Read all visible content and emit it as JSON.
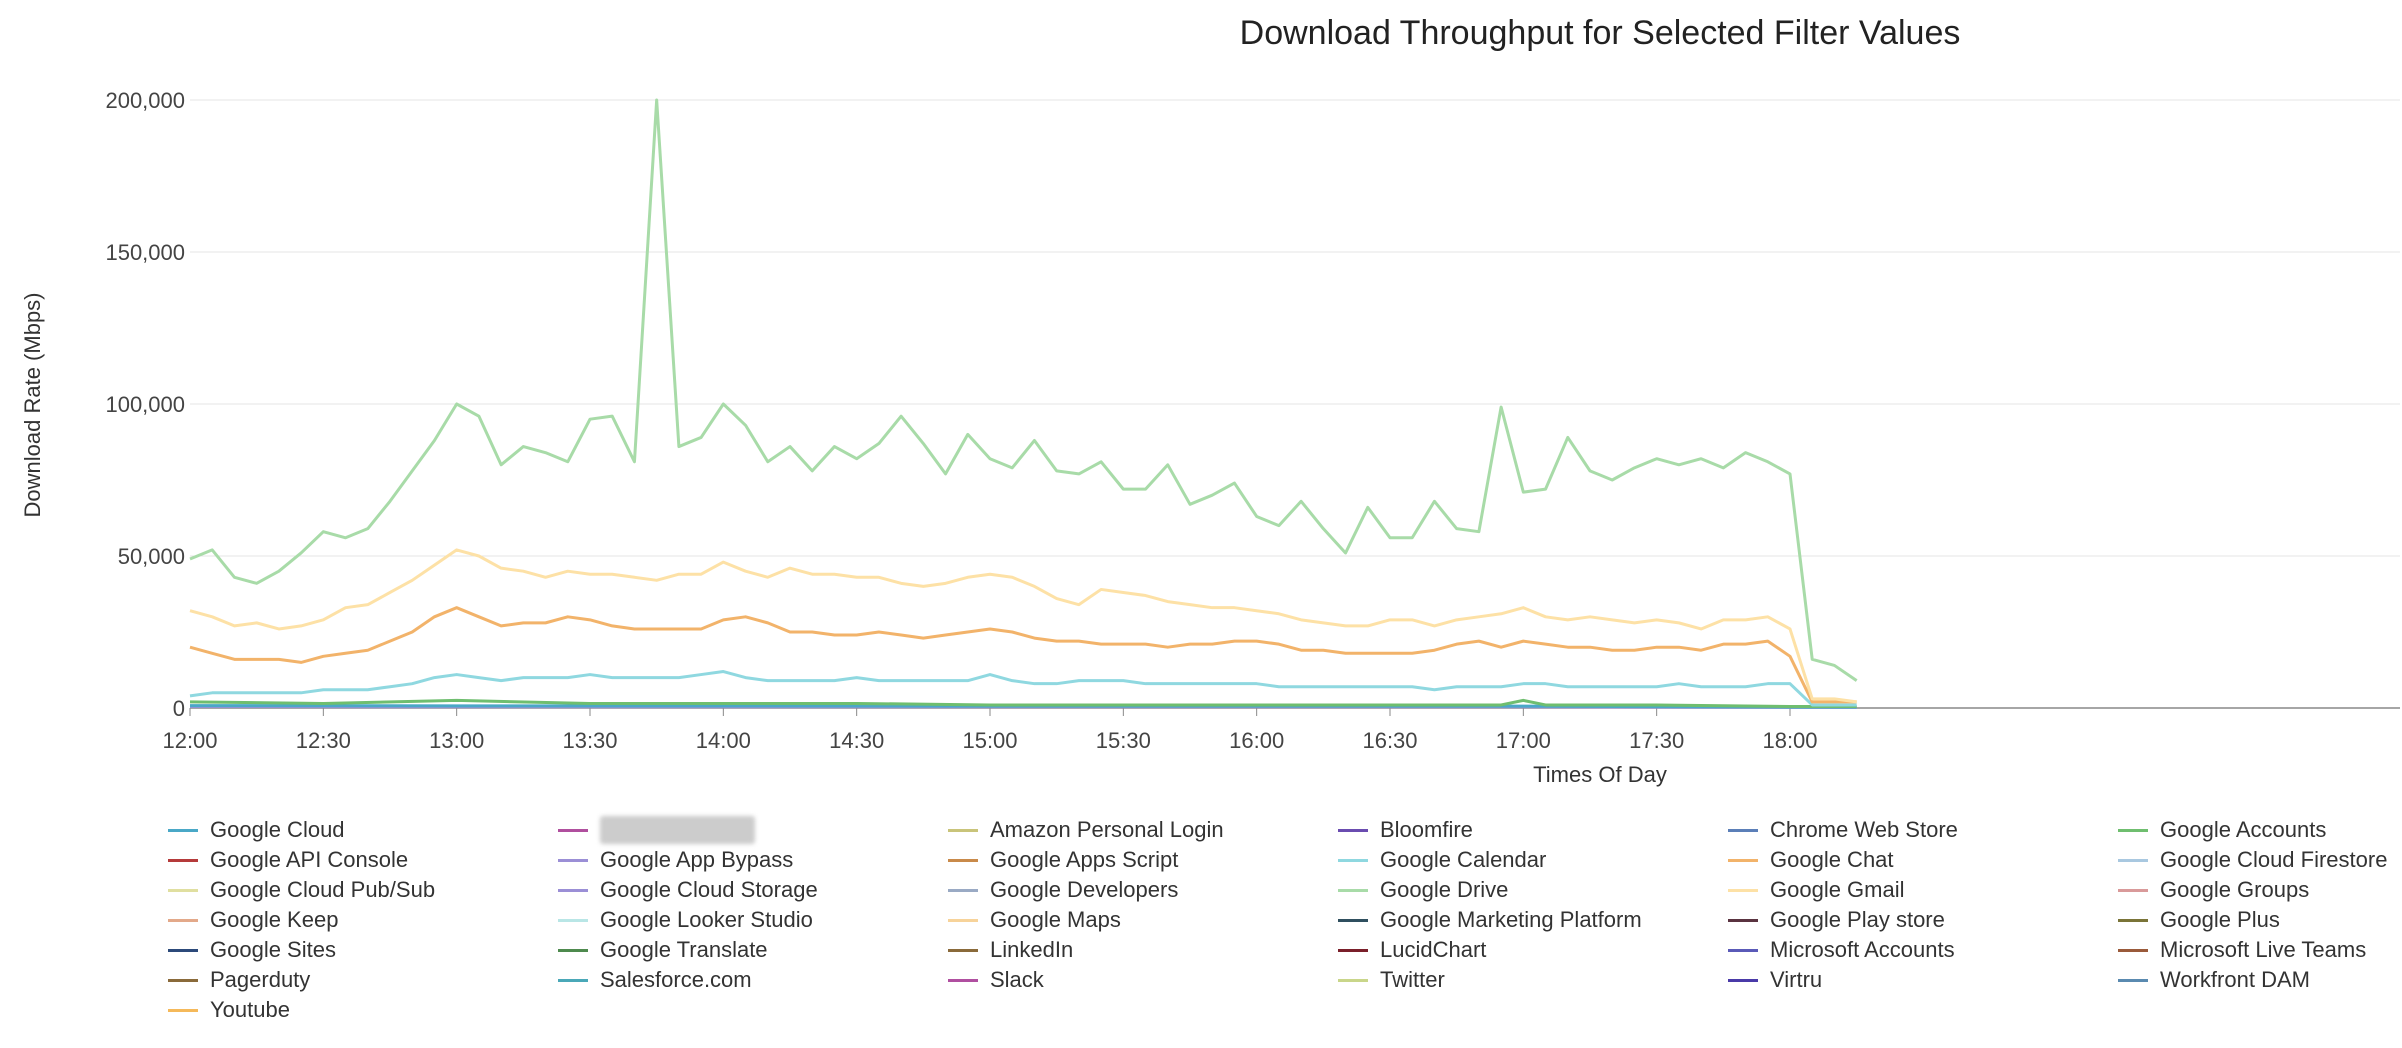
{
  "chart_data": {
    "type": "line",
    "title": "Download Throughput for Selected Filter Values",
    "xlabel": "Times Of Day",
    "ylabel": "Download Rate (Mbps)",
    "ylim": [
      0,
      200000
    ],
    "yticks": [
      0,
      50000,
      100000,
      150000,
      200000
    ],
    "ytick_labels": [
      "0",
      "50,000",
      "100,000",
      "150,000",
      "200,000"
    ],
    "xticks": [
      0,
      30,
      60,
      90,
      120,
      150,
      180,
      210,
      240,
      270,
      300,
      330,
      360
    ],
    "xtick_labels": [
      "12:00",
      "12:30",
      "13:00",
      "13:30",
      "14:00",
      "14:30",
      "15:00",
      "15:30",
      "16:00",
      "16:30",
      "17:00",
      "17:30",
      "18:00"
    ],
    "x_unit": "minutes since 12:00 (time axis)",
    "xlim": [
      0,
      375
    ],
    "grid": true,
    "legend_position": "bottom",
    "series": [
      {
        "name": "Google Drive",
        "color": "#a8dba8",
        "x": [
          0,
          5,
          10,
          15,
          20,
          25,
          30,
          35,
          40,
          45,
          50,
          55,
          60,
          65,
          70,
          75,
          80,
          85,
          90,
          95,
          100,
          105,
          110,
          115,
          120,
          125,
          130,
          135,
          140,
          145,
          150,
          155,
          160,
          165,
          170,
          175,
          180,
          185,
          190,
          195,
          200,
          205,
          210,
          215,
          220,
          225,
          230,
          235,
          240,
          245,
          250,
          255,
          260,
          265,
          270,
          275,
          280,
          285,
          290,
          295,
          300,
          305,
          310,
          315,
          320,
          325,
          330,
          335,
          340,
          345,
          350,
          355,
          360,
          365,
          370,
          375
        ],
        "y": [
          49000,
          52000,
          43000,
          41000,
          45000,
          51000,
          58000,
          56000,
          59000,
          68000,
          78000,
          88000,
          100000,
          96000,
          80000,
          86000,
          84000,
          81000,
          95000,
          96000,
          81000,
          200000,
          86000,
          89000,
          100000,
          93000,
          81000,
          86000,
          78000,
          86000,
          82000,
          87000,
          96000,
          87000,
          77000,
          90000,
          82000,
          79000,
          88000,
          78000,
          77000,
          81000,
          72000,
          72000,
          80000,
          67000,
          70000,
          74000,
          63000,
          60000,
          68000,
          59000,
          51000,
          66000,
          56000,
          56000,
          68000,
          59000,
          58000,
          99000,
          71000,
          72000,
          89000,
          78000,
          75000,
          79000,
          82000,
          80000,
          82000,
          79000,
          84000,
          81000,
          77000,
          16000,
          14000,
          9000
        ]
      },
      {
        "name": "Google Gmail",
        "color": "#fde1a6",
        "x": [
          0,
          5,
          10,
          15,
          20,
          25,
          30,
          35,
          40,
          45,
          50,
          55,
          60,
          65,
          70,
          75,
          80,
          85,
          90,
          95,
          100,
          105,
          110,
          115,
          120,
          125,
          130,
          135,
          140,
          145,
          150,
          155,
          160,
          165,
          170,
          175,
          180,
          185,
          190,
          195,
          200,
          205,
          210,
          215,
          220,
          225,
          230,
          235,
          240,
          245,
          250,
          255,
          260,
          265,
          270,
          275,
          280,
          285,
          290,
          295,
          300,
          305,
          310,
          315,
          320,
          325,
          330,
          335,
          340,
          345,
          350,
          355,
          360,
          365,
          370,
          375
        ],
        "y": [
          32000,
          30000,
          27000,
          28000,
          26000,
          27000,
          29000,
          33000,
          34000,
          38000,
          42000,
          47000,
          52000,
          50000,
          46000,
          45000,
          43000,
          45000,
          44000,
          44000,
          43000,
          42000,
          44000,
          44000,
          48000,
          45000,
          43000,
          46000,
          44000,
          44000,
          43000,
          43000,
          41000,
          40000,
          41000,
          43000,
          44000,
          43000,
          40000,
          36000,
          34000,
          39000,
          38000,
          37000,
          35000,
          34000,
          33000,
          33000,
          32000,
          31000,
          29000,
          28000,
          27000,
          27000,
          29000,
          29000,
          27000,
          29000,
          30000,
          31000,
          33000,
          30000,
          29000,
          30000,
          29000,
          28000,
          29000,
          28000,
          26000,
          29000,
          29000,
          30000,
          26000,
          3000,
          3000,
          2000
        ]
      },
      {
        "name": "Google Chat",
        "color": "#f2b36a",
        "x": [
          0,
          5,
          10,
          15,
          20,
          25,
          30,
          35,
          40,
          45,
          50,
          55,
          60,
          65,
          70,
          75,
          80,
          85,
          90,
          95,
          100,
          105,
          110,
          115,
          120,
          125,
          130,
          135,
          140,
          145,
          150,
          155,
          160,
          165,
          170,
          175,
          180,
          185,
          190,
          195,
          200,
          205,
          210,
          215,
          220,
          225,
          230,
          235,
          240,
          245,
          250,
          255,
          260,
          265,
          270,
          275,
          280,
          285,
          290,
          295,
          300,
          305,
          310,
          315,
          320,
          325,
          330,
          335,
          340,
          345,
          350,
          355,
          360,
          365,
          370,
          375
        ],
        "y": [
          20000,
          18000,
          16000,
          16000,
          16000,
          15000,
          17000,
          18000,
          19000,
          22000,
          25000,
          30000,
          33000,
          30000,
          27000,
          28000,
          28000,
          30000,
          29000,
          27000,
          26000,
          26000,
          26000,
          26000,
          29000,
          30000,
          28000,
          25000,
          25000,
          24000,
          24000,
          25000,
          24000,
          23000,
          24000,
          25000,
          26000,
          25000,
          23000,
          22000,
          22000,
          21000,
          21000,
          21000,
          20000,
          21000,
          21000,
          22000,
          22000,
          21000,
          19000,
          19000,
          18000,
          18000,
          18000,
          18000,
          19000,
          21000,
          22000,
          20000,
          22000,
          21000,
          20000,
          20000,
          19000,
          19000,
          20000,
          20000,
          19000,
          21000,
          21000,
          22000,
          17000,
          2000,
          2000,
          2000
        ]
      },
      {
        "name": "Google Calendar",
        "color": "#8fd8e0",
        "x": [
          0,
          5,
          10,
          15,
          20,
          25,
          30,
          35,
          40,
          45,
          50,
          55,
          60,
          65,
          70,
          75,
          80,
          85,
          90,
          95,
          100,
          105,
          110,
          115,
          120,
          125,
          130,
          135,
          140,
          145,
          150,
          155,
          160,
          165,
          170,
          175,
          180,
          185,
          190,
          195,
          200,
          205,
          210,
          215,
          220,
          225,
          230,
          235,
          240,
          245,
          250,
          255,
          260,
          265,
          270,
          275,
          280,
          285,
          290,
          295,
          300,
          305,
          310,
          315,
          320,
          325,
          330,
          335,
          340,
          345,
          350,
          355,
          360,
          365,
          370,
          375
        ],
        "y": [
          4000,
          5000,
          5000,
          5000,
          5000,
          5000,
          6000,
          6000,
          6000,
          7000,
          8000,
          10000,
          11000,
          10000,
          9000,
          10000,
          10000,
          10000,
          11000,
          10000,
          10000,
          10000,
          10000,
          11000,
          12000,
          10000,
          9000,
          9000,
          9000,
          9000,
          10000,
          9000,
          9000,
          9000,
          9000,
          9000,
          11000,
          9000,
          8000,
          8000,
          9000,
          9000,
          9000,
          8000,
          8000,
          8000,
          8000,
          8000,
          8000,
          7000,
          7000,
          7000,
          7000,
          7000,
          7000,
          7000,
          6000,
          7000,
          7000,
          7000,
          8000,
          8000,
          7000,
          7000,
          7000,
          7000,
          7000,
          8000,
          7000,
          7000,
          7000,
          8000,
          8000,
          1000,
          1000,
          1000
        ]
      },
      {
        "name": "Google Accounts",
        "color": "#6fbe6f",
        "x": [
          0,
          30,
          60,
          90,
          120,
          150,
          180,
          210,
          240,
          270,
          295,
          300,
          305,
          330,
          360,
          375
        ],
        "y": [
          2000,
          1500,
          2500,
          1500,
          1500,
          1500,
          1000,
          1000,
          1000,
          1000,
          1000,
          2500,
          1000,
          1000,
          500,
          500
        ]
      },
      {
        "name": "Google Cloud",
        "color": "#4aa8c7",
        "x": [
          0,
          60,
          120,
          180,
          240,
          300,
          360,
          375
        ],
        "y": [
          800,
          700,
          700,
          600,
          600,
          600,
          300,
          300
        ]
      },
      {
        "name": "Google Cloud Storage",
        "color": "#9b8fd6",
        "x": [
          0,
          60,
          120,
          180,
          240,
          300,
          360,
          375
        ],
        "y": [
          500,
          400,
          400,
          400,
          400,
          400,
          200,
          200
        ]
      }
    ]
  },
  "legend": {
    "items": [
      {
        "label": "Google Cloud",
        "color": "#4aa8c7"
      },
      {
        "label": "",
        "color": "#b04f9e",
        "blurred": true
      },
      {
        "label": "Amazon Personal Login",
        "color": "#c9c47a"
      },
      {
        "label": "Bloomfire",
        "color": "#6a4cb0"
      },
      {
        "label": "Chrome Web Store",
        "color": "#5b7fb8"
      },
      {
        "label": "Google Accounts",
        "color": "#6fbe6f"
      },
      {
        "label": "Google API Console",
        "color": "#b53a3a"
      },
      {
        "label": "Google App Bypass",
        "color": "#9b8fd6"
      },
      {
        "label": "Google Apps Script",
        "color": "#c98a4a"
      },
      {
        "label": "Google Calendar",
        "color": "#8fd8e0"
      },
      {
        "label": "Google Chat",
        "color": "#f2b36a"
      },
      {
        "label": "Google Cloud Firestore",
        "color": "#a9c8e0"
      },
      {
        "label": "Google Cloud Pub/Sub",
        "color": "#e0dfa0"
      },
      {
        "label": "Google Cloud Storage",
        "color": "#9b8fd6"
      },
      {
        "label": "Google Developers",
        "color": "#9aaac4"
      },
      {
        "label": "Google Drive",
        "color": "#a8dba8"
      },
      {
        "label": "Google Gmail",
        "color": "#fde1a6"
      },
      {
        "label": "Google Groups",
        "color": "#d99a9a"
      },
      {
        "label": "Google Keep",
        "color": "#e3a98a"
      },
      {
        "label": "Google Looker Studio",
        "color": "#b9e6e6"
      },
      {
        "label": "Google Maps",
        "color": "#f7d39a"
      },
      {
        "label": "Google Marketing Platform",
        "color": "#2f4f5f"
      },
      {
        "label": "Google Play store",
        "color": "#5a3340"
      },
      {
        "label": "Google Plus",
        "color": "#7a7438"
      },
      {
        "label": "Google Sites",
        "color": "#2c4a7a"
      },
      {
        "label": "Google Translate",
        "color": "#4e8a4e"
      },
      {
        "label": "LinkedIn",
        "color": "#8a6a3a"
      },
      {
        "label": "LucidChart",
        "color": "#7a1f2a"
      },
      {
        "label": "Microsoft Accounts",
        "color": "#5a5ab8"
      },
      {
        "label": "Microsoft Live Teams",
        "color": "#9a5a3a"
      },
      {
        "label": "Pagerduty",
        "color": "#8a6a3a"
      },
      {
        "label": "Salesforce.com",
        "color": "#4aa8b8"
      },
      {
        "label": "Slack",
        "color": "#b04fa0"
      },
      {
        "label": "Twitter",
        "color": "#c9d68a"
      },
      {
        "label": "Virtru",
        "color": "#4a3aa8"
      },
      {
        "label": "Workfront DAM",
        "color": "#5a8ab0"
      },
      {
        "label": "Youtube",
        "color": "#f5b95a"
      }
    ]
  }
}
